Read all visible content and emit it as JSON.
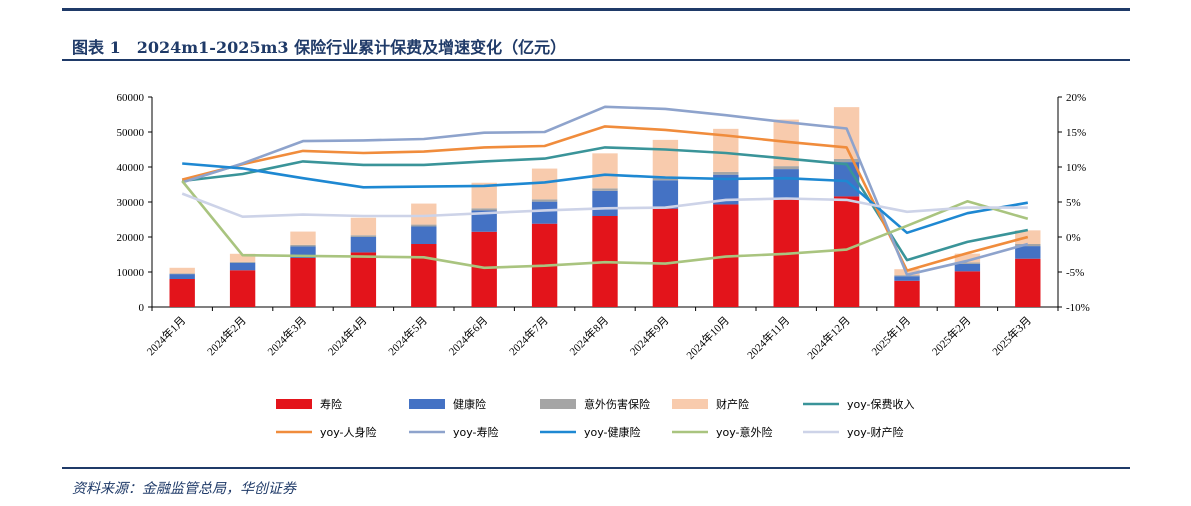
{
  "figure": {
    "title": "图表 1　2024m1-2025m3 保险行业累计保费及增速变化（亿元）",
    "source": "资料来源：金融监管总局，华创证券"
  },
  "chart_data": {
    "type": "bar",
    "stacked": true,
    "categories": [
      "2024年1月",
      "2024年2月",
      "2024年3月",
      "2024年4月",
      "2024年5月",
      "2024年6月",
      "2024年7月",
      "2024年8月",
      "2024年9月",
      "2024年10月",
      "2024年11月",
      "2024年12月",
      "2025年1月",
      "2025年2月",
      "2025年3月"
    ],
    "left_axis": {
      "min": 0,
      "max": 60000,
      "ticks": [
        0,
        10000,
        20000,
        30000,
        40000,
        50000,
        60000
      ],
      "tick_labels": [
        "0",
        "10000",
        "20000",
        "30000",
        "40000",
        "50000",
        "60000"
      ]
    },
    "right_axis": {
      "min": -10,
      "max": 20,
      "ticks": [
        -10,
        -5,
        0,
        5,
        10,
        15,
        20
      ],
      "tick_labels": [
        "-10%",
        "-5%",
        "0%",
        "5%",
        "10%",
        "15%",
        "20%"
      ]
    },
    "bar_series": [
      {
        "name": "寿险",
        "color": "#e3141b",
        "values": [
          8000,
          10500,
          14000,
          15600,
          18000,
          21500,
          23800,
          26000,
          28100,
          29300,
          30800,
          31600,
          7500,
          10200,
          13800
        ]
      },
      {
        "name": "健康险",
        "color": "#4472c4",
        "values": [
          1400,
          2100,
          3300,
          4400,
          5000,
          6100,
          6300,
          7200,
          8100,
          8500,
          8600,
          9800,
          1300,
          2100,
          3600
        ]
      },
      {
        "name": "意外伤害保险",
        "color": "#a5a5a5",
        "values": [
          200,
          300,
          450,
          500,
          550,
          600,
          650,
          700,
          750,
          800,
          850,
          900,
          300,
          450,
          600
        ]
      },
      {
        "name": "财产险",
        "color": "#f8cbad",
        "values": [
          1600,
          2300,
          3800,
          5000,
          6000,
          7300,
          8800,
          10000,
          10800,
          12300,
          13300,
          14800,
          1700,
          2500,
          3900
        ]
      }
    ],
    "line_series": [
      {
        "name": "yoy-保费收入",
        "color": "#3a9499",
        "values": [
          8.0,
          9.0,
          10.8,
          10.3,
          10.3,
          10.8,
          11.2,
          12.8,
          12.5,
          12.0,
          11.2,
          10.4,
          -3.3,
          -0.7,
          1.0
        ]
      },
      {
        "name": "yoy-人身险",
        "color": "#f08c3c",
        "values": [
          8.2,
          10.4,
          12.3,
          12.0,
          12.2,
          12.8,
          13.0,
          15.8,
          15.3,
          14.5,
          13.6,
          12.8,
          -4.8,
          -2.3,
          0.0
        ]
      },
      {
        "name": "yoy-寿险",
        "color": "#8ea3cc",
        "values": [
          7.8,
          10.5,
          13.7,
          13.8,
          14.0,
          14.9,
          15.0,
          18.6,
          18.3,
          17.4,
          16.4,
          15.5,
          -5.4,
          -3.4,
          -1.0
        ]
      },
      {
        "name": "yoy-健康险",
        "color": "#1e88d2",
        "values": [
          10.5,
          9.8,
          8.4,
          7.1,
          7.2,
          7.3,
          7.8,
          8.9,
          8.5,
          8.3,
          8.4,
          8.0,
          0.6,
          3.4,
          4.9
        ]
      },
      {
        "name": "yoy-意外险",
        "color": "#a9c47f",
        "values": [
          8.0,
          -2.6,
          -2.7,
          -2.8,
          -2.9,
          -4.4,
          -4.1,
          -3.6,
          -3.8,
          -2.8,
          -2.4,
          -1.8,
          1.6,
          5.1,
          2.6
        ]
      },
      {
        "name": "yoy-财产险",
        "color": "#cdd3e8",
        "values": [
          6.2,
          2.9,
          3.2,
          3.0,
          3.0,
          3.4,
          3.8,
          4.1,
          4.2,
          5.3,
          5.5,
          5.3,
          3.6,
          4.2,
          4.2
        ]
      }
    ],
    "legend": {
      "position": "bottom",
      "rows": [
        [
          "寿险",
          "健康险",
          "意外伤害保险",
          "财产险",
          "yoy-保费收入"
        ],
        [
          "yoy-人身险",
          "yoy-寿险",
          "yoy-健康险",
          "yoy-意外险",
          "yoy-财产险"
        ]
      ]
    },
    "grid": false
  }
}
